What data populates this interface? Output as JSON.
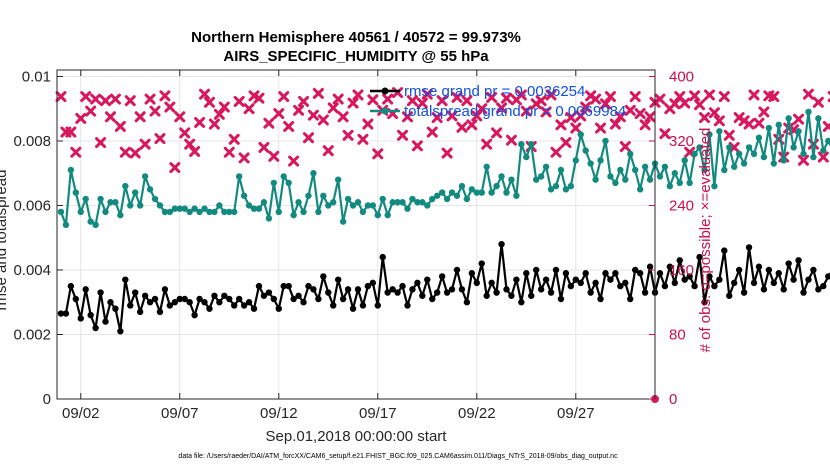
{
  "chart_data": {
    "type": "line",
    "title": "Northern Hemisphere 40561 / 40572 = 99.973%",
    "subtitle": "AIRS_SPECIFIC_HUMIDITY @ 55 hPa",
    "xlabel": "Sep.01,2018 00:00:00 start",
    "ylabel": "rmse and totalspread",
    "ylabel_right": "# of obs: o=possible; ×=evaluated",
    "footer": "data file: /Users/raeder/DAI/ATM_forcXX/CAM6_setup/f.e21.FHIST_BGC.f09_025.CAM6assim.011/Diags_NTrS_2018-09/obs_diag_output.nc",
    "x_ticks": [
      {
        "day": 2,
        "label": "09/02"
      },
      {
        "day": 7,
        "label": "09/07"
      },
      {
        "day": 12,
        "label": "09/12"
      },
      {
        "day": 17,
        "label": "09/17"
      },
      {
        "day": 22,
        "label": "09/22"
      },
      {
        "day": 27,
        "label": "09/27"
      }
    ],
    "xlim": [
      0.8,
      31.0
    ],
    "ylim": [
      0,
      0.0102
    ],
    "y_ticks": [
      {
        "value": 0,
        "label": "0"
      },
      {
        "value": 0.002,
        "label": "0.002"
      },
      {
        "value": 0.004,
        "label": "0.004"
      },
      {
        "value": 0.006,
        "label": "0.006"
      },
      {
        "value": 0.008,
        "label": "0.008"
      },
      {
        "value": 0.01,
        "label": "0.01"
      }
    ],
    "ylim_right": [
      0,
      408
    ],
    "y_ticks_right": [
      {
        "value": 0,
        "label": "0"
      },
      {
        "value": 80,
        "label": "80"
      },
      {
        "value": 160,
        "label": "160"
      },
      {
        "value": 240,
        "label": "240"
      },
      {
        "value": 320,
        "label": "320"
      },
      {
        "value": 400,
        "label": "400"
      }
    ],
    "grid": true,
    "legend": "top-right",
    "colors": {
      "rmse": "#000000",
      "totalspread": "#138a80",
      "obs": "#d8175e",
      "legend_text": "#1050e0"
    },
    "x_step_days": 0.25,
    "x_start_day": 1.0,
    "series": [
      {
        "name": "rmse grand pr = 0.0036254",
        "key": "rmse",
        "values": [
          0.00265,
          0.00265,
          0.0035,
          0.0031,
          0.0025,
          0.0034,
          0.0026,
          0.0022,
          0.0033,
          0.0024,
          0.003,
          0.0028,
          0.0021,
          0.0037,
          0.0029,
          0.0033,
          0.0027,
          0.0032,
          0.003,
          0.0031,
          0.0027,
          0.0034,
          0.0029,
          0.003,
          0.0031,
          0.0031,
          0.003,
          0.0026,
          0.0031,
          0.003,
          0.0028,
          0.0032,
          0.003,
          0.0032,
          0.0031,
          0.0029,
          0.0031,
          0.0029,
          0.003,
          0.0028,
          0.0035,
          0.0032,
          0.0033,
          0.0031,
          0.0028,
          0.0035,
          0.0035,
          0.0031,
          0.0032,
          0.003,
          0.0035,
          0.0034,
          0.0031,
          0.0038,
          0.0033,
          0.0029,
          0.0037,
          0.0031,
          0.0034,
          0.0028,
          0.0034,
          0.0029,
          0.0035,
          0.0036,
          0.0029,
          0.0044,
          0.0033,
          0.0034,
          0.0033,
          0.0035,
          0.0029,
          0.0034,
          0.0036,
          0.0032,
          0.0037,
          0.0031,
          0.0033,
          0.0038,
          0.0033,
          0.0034,
          0.004,
          0.0034,
          0.003,
          0.0039,
          0.0036,
          0.0042,
          0.0032,
          0.0036,
          0.0033,
          0.0048,
          0.0034,
          0.0032,
          0.0037,
          0.003,
          0.0039,
          0.0032,
          0.004,
          0.0034,
          0.0037,
          0.0033,
          0.004,
          0.0031,
          0.0039,
          0.0035,
          0.0037,
          0.0036,
          0.0039,
          0.0033,
          0.0036,
          0.0031,
          0.0039,
          0.0037,
          0.0039,
          0.0035,
          0.0036,
          0.0031,
          0.004,
          0.0039,
          0.0033,
          0.0041,
          0.0033,
          0.0039,
          0.0035,
          0.0041,
          0.0036,
          0.0043,
          0.0037,
          0.0038,
          0.0035,
          0.0044,
          0.003,
          0.0038,
          0.0035,
          0.0037,
          0.0046,
          0.0032,
          0.0036,
          0.004,
          0.0033,
          0.0047,
          0.0036,
          0.0041,
          0.0034,
          0.004,
          0.0036,
          0.0039,
          0.0034,
          0.0042,
          0.0037,
          0.0043,
          0.0033,
          0.0037,
          0.004,
          0.0034,
          0.0035,
          0.0038,
          0.004,
          0.0034,
          0.0045,
          0.0038,
          0.0033,
          0.004,
          0.0036,
          0.0039,
          0.0032,
          0.0041,
          0.0034,
          0.004,
          0.0036,
          0.0037,
          0.0035,
          0.004,
          0.0033,
          0.0039,
          0.0035,
          0.0043,
          0.0036,
          0.0037,
          0.0033,
          0.0039,
          0.0034,
          0.0045,
          0.0036,
          0.004,
          0.0035,
          0.0038,
          0.0033,
          0.0039,
          0.0032,
          0.0037,
          0.004,
          0.0034,
          0.0041
        ]
      },
      {
        "name": "totalspread grand pr = 0.0069984",
        "key": "totalspread",
        "values": [
          0.0058,
          0.0054,
          0.0071,
          0.0064,
          0.0058,
          0.0062,
          0.0055,
          0.0054,
          0.0062,
          0.0058,
          0.0061,
          0.0061,
          0.0057,
          0.0066,
          0.006,
          0.0064,
          0.006,
          0.0069,
          0.0065,
          0.0062,
          0.006,
          0.0058,
          0.0058,
          0.0059,
          0.0059,
          0.0059,
          0.0058,
          0.0059,
          0.0058,
          0.0059,
          0.0058,
          0.0058,
          0.006,
          0.0058,
          0.0058,
          0.0058,
          0.0069,
          0.0063,
          0.006,
          0.0059,
          0.0059,
          0.0061,
          0.0056,
          0.0067,
          0.0058,
          0.0069,
          0.0067,
          0.0057,
          0.0061,
          0.0058,
          0.0063,
          0.007,
          0.0058,
          0.0063,
          0.006,
          0.0061,
          0.0068,
          0.0055,
          0.0062,
          0.006,
          0.0061,
          0.0058,
          0.006,
          0.006,
          0.0057,
          0.0062,
          0.0057,
          0.0061,
          0.0061,
          0.0061,
          0.0059,
          0.0062,
          0.0061,
          0.0061,
          0.006,
          0.0062,
          0.0063,
          0.0064,
          0.0062,
          0.0064,
          0.0063,
          0.0066,
          0.0062,
          0.0065,
          0.0064,
          0.0064,
          0.0072,
          0.0064,
          0.0066,
          0.0069,
          0.0064,
          0.0068,
          0.0063,
          0.0079,
          0.0075,
          0.0079,
          0.0068,
          0.0069,
          0.0072,
          0.0065,
          0.0066,
          0.0071,
          0.0065,
          0.0066,
          0.0074,
          0.0082,
          0.0077,
          0.0073,
          0.0068,
          0.0074,
          0.008,
          0.0069,
          0.0067,
          0.0071,
          0.0068,
          0.0076,
          0.0071,
          0.0065,
          0.0072,
          0.0068,
          0.0073,
          0.0069,
          0.0072,
          0.0066,
          0.007,
          0.0067,
          0.0074,
          0.0067,
          0.0076,
          0.0078,
          0.0071,
          0.0082,
          0.0066,
          0.0083,
          0.0071,
          0.0078,
          0.0072,
          0.0076,
          0.0073,
          0.0078,
          0.0076,
          0.0081,
          0.0075,
          0.0084,
          0.0073,
          0.0085,
          0.0074,
          0.0087,
          0.0078,
          0.0083,
          0.0076,
          0.0089,
          0.0075,
          0.0087,
          0.0077,
          0.008,
          0.0077,
          0.0082,
          0.0079,
          0.0086,
          0.0079,
          0.0084,
          0.0081,
          0.009,
          0.0082,
          0.0086,
          0.008,
          0.0082,
          0.0085,
          0.008,
          0.0078,
          0.0088,
          0.008,
          0.0086,
          0.0077,
          0.0083,
          0.0078,
          0.0086,
          0.008,
          0.0082,
          0.0079,
          0.0084,
          0.0081,
          0.0083,
          0.0082,
          0.0085,
          0.0083,
          0.0086,
          0.0081,
          0.0084,
          0.0079,
          0.0088,
          0.008,
          0.0079,
          0.0075
        ]
      }
    ],
    "obs_series": {
      "name": "# of obs evaluated",
      "key": "obs",
      "values": [
        375,
        331,
        331,
        306,
        348,
        375,
        357,
        372,
        318,
        370,
        350,
        372,
        338,
        306,
        370,
        305,
        350,
        316,
        372,
        357,
        323,
        376,
        362,
        287,
        350,
        330,
        316,
        307,
        343,
        378,
        368,
        341,
        353,
        362,
        306,
        322,
        369,
        299,
        360,
        376,
        373,
        312,
        342,
        301,
        354,
        375,
        338,
        295,
        358,
        369,
        324,
        352,
        379,
        346,
        308,
        361,
        372,
        350,
        327,
        367,
        377,
        322,
        341,
        371,
        304,
        358,
        372,
        354,
        380,
        327,
        350,
        370,
        314,
        367,
        378,
        331,
        349,
        370,
        305,
        351,
        374,
        337,
        370,
        340,
        351,
        360,
        316,
        374,
        330,
        361,
        373,
        321,
        371,
        377,
        357,
        313,
        366,
        370,
        356,
        377,
        306,
        340,
        318,
        349,
        336,
        351,
        362,
        376,
        372,
        336,
        366,
        375,
        341,
        350,
        313,
        358,
        375,
        354,
        340,
        350,
        368,
        372,
        329,
        360,
        366,
        375,
        367,
        306,
        376,
        365,
        349,
        377,
        355,
        345,
        375,
        327,
        312,
        349,
        345,
        341,
        377,
        342,
        356,
        376,
        375,
        322,
        300,
        336,
        334,
        347,
        296,
        378,
        316,
        368,
        300,
        338,
        375,
        336,
        365,
        327,
        375,
        328,
        285,
        374,
        342,
        363,
        354,
        370,
        301,
        360,
        342,
        348,
        369,
        354,
        304,
        360,
        323,
        371,
        339,
        352,
        372,
        375,
        342,
        347,
        317,
        358,
        349,
        356,
        321,
        370,
        342,
        336,
        320,
        344,
        341,
        340,
        337
      ]
    },
    "obs_possible_end": 0
  }
}
